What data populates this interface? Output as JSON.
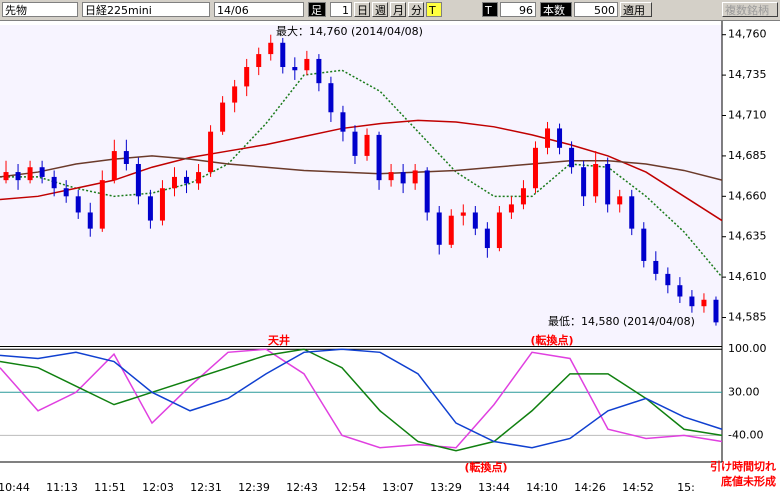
{
  "toolbar": {
    "market": "先物",
    "symbol": "日経225mini",
    "contract": "14/06",
    "bar_label": "足",
    "bar_count": "1",
    "day": "日",
    "week": "週",
    "month": "月",
    "minute": "分",
    "tick": "T",
    "tick2": "T",
    "tick_value": "96",
    "count_label": "本数",
    "count_value": "500",
    "apply": "適用",
    "multi": "複数銘柄"
  },
  "chart_data": {
    "type": "candlestick",
    "ohlc": [
      [
        14670,
        14682,
        14668,
        14675
      ],
      [
        14675,
        14680,
        14664,
        14670
      ],
      [
        14670,
        14682,
        14668,
        14678
      ],
      [
        14678,
        14682,
        14668,
        14672
      ],
      [
        14672,
        14676,
        14660,
        14665
      ],
      [
        14665,
        14670,
        14656,
        14660
      ],
      [
        14660,
        14664,
        14646,
        14650
      ],
      [
        14650,
        14656,
        14635,
        14640
      ],
      [
        14640,
        14676,
        14638,
        14670
      ],
      [
        14670,
        14695,
        14668,
        14688
      ],
      [
        14688,
        14695,
        14676,
        14680
      ],
      [
        14680,
        14684,
        14655,
        14660
      ],
      [
        14660,
        14664,
        14640,
        14645
      ],
      [
        14645,
        14670,
        14642,
        14665
      ],
      [
        14665,
        14678,
        14660,
        14672
      ],
      [
        14672,
        14676,
        14662,
        14668
      ],
      [
        14668,
        14680,
        14664,
        14675
      ],
      [
        14675,
        14704,
        14672,
        14700
      ],
      [
        14700,
        14722,
        14698,
        14718
      ],
      [
        14718,
        14732,
        14712,
        14728
      ],
      [
        14728,
        14745,
        14722,
        14740
      ],
      [
        14740,
        14752,
        14735,
        14748
      ],
      [
        14748,
        14760,
        14744,
        14755
      ],
      [
        14755,
        14758,
        14736,
        14740
      ],
      [
        14740,
        14746,
        14732,
        14738
      ],
      [
        14738,
        14750,
        14735,
        14745
      ],
      [
        14745,
        14748,
        14725,
        14730
      ],
      [
        14730,
        14734,
        14706,
        14712
      ],
      [
        14712,
        14716,
        14694,
        14700
      ],
      [
        14700,
        14704,
        14680,
        14685
      ],
      [
        14685,
        14702,
        14682,
        14698
      ],
      [
        14698,
        14700,
        14664,
        14670
      ],
      [
        14670,
        14680,
        14666,
        14675
      ],
      [
        14675,
        14680,
        14662,
        14668
      ],
      [
        14668,
        14680,
        14664,
        14676
      ],
      [
        14676,
        14678,
        14645,
        14650
      ],
      [
        14650,
        14654,
        14624,
        14630
      ],
      [
        14630,
        14652,
        14628,
        14648
      ],
      [
        14648,
        14655,
        14642,
        14650
      ],
      [
        14650,
        14654,
        14636,
        14640
      ],
      [
        14640,
        14644,
        14622,
        14628
      ],
      [
        14628,
        14654,
        14626,
        14650
      ],
      [
        14650,
        14660,
        14646,
        14655
      ],
      [
        14655,
        14670,
        14652,
        14665
      ],
      [
        14665,
        14694,
        14662,
        14690
      ],
      [
        14690,
        14706,
        14686,
        14702
      ],
      [
        14702,
        14705,
        14686,
        14690
      ],
      [
        14690,
        14694,
        14674,
        14678
      ],
      [
        14678,
        14682,
        14654,
        14660
      ],
      [
        14660,
        14688,
        14656,
        14680
      ],
      [
        14680,
        14684,
        14650,
        14655
      ],
      [
        14655,
        14664,
        14650,
        14660
      ],
      [
        14660,
        14664,
        14636,
        14640
      ],
      [
        14640,
        14644,
        14616,
        14620
      ],
      [
        14620,
        14626,
        14608,
        14612
      ],
      [
        14612,
        14616,
        14600,
        14605
      ],
      [
        14605,
        14610,
        14594,
        14598
      ],
      [
        14598,
        14602,
        14588,
        14592
      ],
      [
        14592,
        14600,
        14588,
        14596
      ],
      [
        14596,
        14598,
        14580,
        14582
      ]
    ],
    "up_color": "#ff0000",
    "down_color": "#0000cc",
    "ylim": [
      14568,
      14766
    ],
    "yticks": [
      {
        "value": 14760,
        "label": "14,760"
      },
      {
        "value": 14735,
        "label": "14,735"
      },
      {
        "value": 14710,
        "label": "14,710"
      },
      {
        "value": 14685,
        "label": "14,685"
      },
      {
        "value": 14660,
        "label": "14,660"
      },
      {
        "value": 14635,
        "label": "14,635"
      },
      {
        "value": 14610,
        "label": "14,610"
      },
      {
        "value": 14585,
        "label": "14,585"
      }
    ],
    "series": [
      {
        "color": "#1a7a1a",
        "values": [
          14672,
          14672,
          14665,
          14660,
          14662,
          14668,
          14680,
          14705,
          14735,
          14738,
          14725,
          14700,
          14675,
          14660,
          14660,
          14680,
          14678,
          14660,
          14638,
          14610
        ]
      },
      {
        "color": "#c00000",
        "values": [
          14658,
          14660,
          14665,
          14670,
          14678,
          14684,
          14688,
          14692,
          14697,
          14702,
          14705,
          14707,
          14706,
          14703,
          14698,
          14692,
          14685,
          14675,
          14660,
          14645
        ]
      },
      {
        "color": "#6b3a2a",
        "values": [
          14672,
          14675,
          14680,
          14683,
          14685,
          14683,
          14680,
          14678,
          14676,
          14675,
          14674,
          14675,
          14676,
          14678,
          14680,
          14682,
          14682,
          14680,
          14676,
          14670
        ]
      }
    ],
    "x_labels": [
      "10:44",
      "11:13",
      "11:51",
      "12:03",
      "12:31",
      "12:39",
      "12:43",
      "12:54",
      "13:07",
      "13:29",
      "13:44",
      "14:10",
      "14:26",
      "14:52",
      "15:"
    ],
    "annotations": {
      "max": "最大：14,760 (2014/04/08)",
      "min": "最低：14,580 (2014/04/08)",
      "top": "天井",
      "turn1": "(転換点)",
      "turn2": "(転換点)",
      "note1": "引け時間切れ",
      "note2": "底値未形成"
    },
    "oscillator": {
      "ylim": [
        -80,
        102
      ],
      "yticks": [
        {
          "value": 100,
          "label": "100.00"
        },
        {
          "value": 30,
          "label": "30.00"
        },
        {
          "value": -40,
          "label": "-40.00"
        }
      ],
      "series": [
        {
          "color": "#e040e0",
          "values": [
            70,
            0,
            30,
            92,
            -20,
            40,
            95,
            100,
            60,
            -40,
            -60,
            -55,
            -60,
            10,
            95,
            85,
            -30,
            -45,
            -40,
            -50
          ]
        },
        {
          "color": "#108010",
          "values": [
            80,
            70,
            40,
            10,
            30,
            50,
            70,
            90,
            100,
            70,
            0,
            -50,
            -65,
            -50,
            0,
            60,
            60,
            20,
            -30,
            -40
          ]
        },
        {
          "color": "#1040d0",
          "values": [
            90,
            85,
            95,
            80,
            30,
            0,
            20,
            60,
            95,
            100,
            95,
            60,
            -20,
            -50,
            -60,
            -45,
            0,
            20,
            -10,
            -30
          ]
        }
      ]
    }
  }
}
